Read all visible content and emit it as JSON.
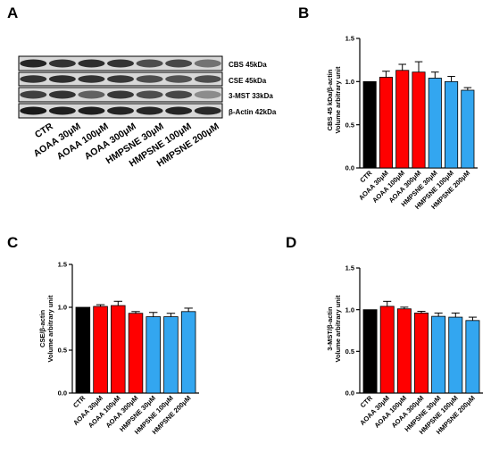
{
  "colors": {
    "control": "#000000",
    "aoaa": "#ff0000",
    "hmpsne": "#33a6f0",
    "axis": "#000000"
  },
  "panels": {
    "A": {
      "letter": "A"
    },
    "B": {
      "letter": "B"
    },
    "C": {
      "letter": "C"
    },
    "D": {
      "letter": "D"
    }
  },
  "blot": {
    "band_labels": [
      "CBS 45kDa",
      "CSE 45kDa",
      "3-MST 33kDa",
      "β-Actin 42kDa"
    ],
    "lane_labels": [
      "CTR",
      "AOAA 30μM",
      "AOAA 100μM",
      "AOAA 300μM",
      "HMPSNE 30μM",
      "HMPSNE 100μM",
      "HMPSNE 200μM"
    ]
  },
  "chart_data": [
    {
      "panel": "B",
      "type": "bar",
      "ylabel_lines": [
        "CBS 45 kDa/β-actin",
        "Volume arbitrary unit"
      ],
      "ylim": [
        0,
        1.5
      ],
      "yticks": [
        "0.0",
        "0.5",
        "1.0",
        "1.5"
      ],
      "categories": [
        "CTR",
        "AOAA 30μM",
        "AOAA 100μM",
        "AOAA 300μM",
        "HMPSNE 30μM",
        "HMPSNE 100μM",
        "HMPSNE 200μM"
      ],
      "values": [
        1.0,
        1.05,
        1.13,
        1.11,
        1.04,
        1.0,
        0.9
      ],
      "errors": [
        0.0,
        0.07,
        0.07,
        0.12,
        0.07,
        0.06,
        0.03
      ],
      "groups": [
        "control",
        "aoaa",
        "aoaa",
        "aoaa",
        "hmpsne",
        "hmpsne",
        "hmpsne"
      ]
    },
    {
      "panel": "C",
      "type": "bar",
      "ylabel_lines": [
        "CSE/β-actin",
        "Volume arbitrary unit"
      ],
      "ylim": [
        0,
        1.5
      ],
      "yticks": [
        "0.0",
        "0.5",
        "1.0",
        "1.5"
      ],
      "categories": [
        "CTR",
        "AOAA 30μM",
        "AOAA 100μM",
        "AOAA 300μM",
        "HMPSNE 30μM",
        "HMPSNE 100μM",
        "HMPSNE 200μM"
      ],
      "values": [
        1.0,
        1.01,
        1.02,
        0.93,
        0.89,
        0.89,
        0.95
      ],
      "errors": [
        0.0,
        0.02,
        0.05,
        0.02,
        0.05,
        0.04,
        0.04
      ],
      "groups": [
        "control",
        "aoaa",
        "aoaa",
        "aoaa",
        "hmpsne",
        "hmpsne",
        "hmpsne"
      ]
    },
    {
      "panel": "D",
      "type": "bar",
      "ylabel_lines": [
        "3-MST/β-actin",
        "Volume arbitrary unit"
      ],
      "ylim": [
        0,
        1.5
      ],
      "yticks": [
        "0.0",
        "0.5",
        "1.0",
        "1.5"
      ],
      "categories": [
        "CTR",
        "AOAA 30μM",
        "AOAA 100μM",
        "AOAA 300μM",
        "HMPSNE 30μM",
        "HMPSNE 100μM",
        "HMPSNE 200μM"
      ],
      "values": [
        1.0,
        1.04,
        1.01,
        0.96,
        0.92,
        0.91,
        0.87
      ],
      "errors": [
        0.0,
        0.06,
        0.02,
        0.02,
        0.04,
        0.05,
        0.04
      ],
      "groups": [
        "control",
        "aoaa",
        "aoaa",
        "aoaa",
        "hmpsne",
        "hmpsne",
        "hmpsne"
      ]
    }
  ]
}
